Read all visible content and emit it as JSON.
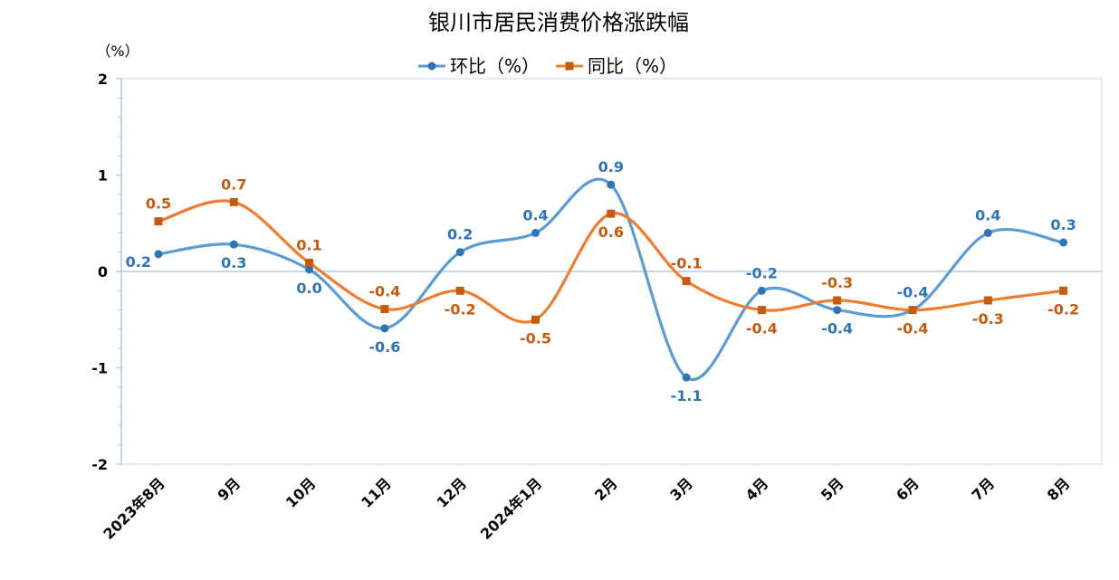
{
  "chart_data": {
    "type": "line",
    "title": "银川市居民消费价格涨跌幅",
    "unit_label": "（%）",
    "categories": [
      "2023年8月",
      "9月",
      "10月",
      "11月",
      "12月",
      "2024年1月",
      "2月",
      "3月",
      "4月",
      "5月",
      "6月",
      "7月",
      "8月"
    ],
    "ylim": [
      -2,
      2
    ],
    "yticks": [
      "2",
      "1",
      "0",
      "-1",
      "-2"
    ],
    "series": [
      {
        "name": "环比（%）",
        "color": "#5b9bd5",
        "label_color": "#2e75b6",
        "marker": "circle",
        "values": [
          0.18,
          0.28,
          0.02,
          -0.59,
          0.2,
          0.4,
          0.9,
          -1.1,
          -0.2,
          -0.4,
          -0.4,
          0.4,
          0.3
        ],
        "labels": [
          "0.2",
          "0.3",
          "0.0",
          "-0.6",
          "0.2",
          "0.4",
          "0.9",
          "-1.1",
          "-0.2",
          "-0.4",
          "-0.4",
          "0.4",
          "0.3"
        ]
      },
      {
        "name": "同比（%）",
        "color": "#ed7d31",
        "label_color": "#c55a11",
        "marker": "square",
        "values": [
          0.52,
          0.72,
          0.09,
          -0.39,
          -0.2,
          -0.5,
          0.6,
          -0.1,
          -0.4,
          -0.3,
          -0.4,
          -0.3,
          -0.2
        ],
        "labels": [
          "0.5",
          "0.7",
          "0.1",
          "-0.4",
          "-0.2",
          "-0.5",
          "0.6",
          "-0.1",
          "-0.4",
          "-0.3",
          "-0.4",
          "-0.3",
          "-0.2"
        ]
      }
    ],
    "legend_position": "top",
    "grid": false
  }
}
